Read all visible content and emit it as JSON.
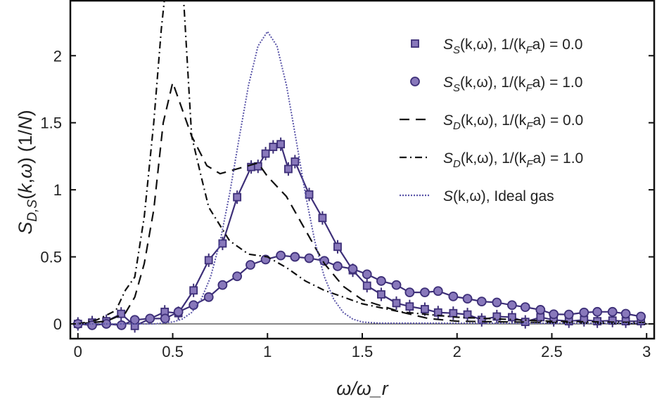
{
  "chart_data": {
    "type": "line",
    "xlabel": "ω/ω_r",
    "ylabel": "S_D,S(k,ω) (1/N)",
    "xlim": [
      -0.04,
      3.04
    ],
    "ylim": [
      -0.11,
      2.41
    ],
    "xticks": [
      "0",
      "0.5",
      "1",
      "1.5",
      "2",
      "2.5",
      "3"
    ],
    "xtick_values": [
      0,
      0.5,
      1,
      1.5,
      2,
      2.5,
      3
    ],
    "yticks": [
      "0",
      "0.5",
      "1",
      "1.5",
      "2"
    ],
    "ytick_values": [
      0,
      0.5,
      1,
      1.5,
      2
    ],
    "grid": false,
    "legend_position": "top-right",
    "colors": {
      "accent": "#3d2f78",
      "marker_fill": "#8878bb",
      "black": "#111111",
      "ideal": "#5a55a8"
    },
    "series": [
      {
        "name": "S_S(k,ω), 1/(k_F a) = 0.0",
        "legend": {
          "main": "S",
          "sub": "S",
          "args": "(k,ω), 1/(k",
          "sub2": "F",
          "tail": "a) = 0.0"
        },
        "style": "squares-line",
        "x": [
          0,
          0.075,
          0.15,
          0.228,
          0.3,
          0.458,
          0.53,
          0.61,
          0.69,
          0.763,
          0.84,
          0.914,
          0.95,
          0.99,
          1.03,
          1.07,
          1.11,
          1.145,
          1.22,
          1.29,
          1.37,
          1.45,
          1.525,
          1.6,
          1.68,
          1.75,
          1.83,
          1.9,
          1.98,
          2.055,
          2.13,
          2.21,
          2.29,
          2.36,
          2.44,
          2.51,
          2.59,
          2.67,
          2.74,
          2.82,
          2.89,
          2.97
        ],
        "y": [
          0,
          0.01,
          0.02,
          0.075,
          -0.015,
          0.09,
          0.08,
          0.25,
          0.475,
          0.6,
          0.945,
          1.17,
          1.175,
          1.27,
          1.32,
          1.34,
          1.155,
          1.21,
          0.965,
          0.79,
          0.575,
          0.4,
          0.285,
          0.22,
          0.155,
          0.13,
          0.11,
          0.085,
          0.08,
          0.07,
          0.03,
          0.055,
          0.05,
          0.015,
          0.05,
          0.03,
          0.02,
          0.03,
          0.02,
          0.025,
          0.02,
          0.02
        ],
        "yerr": 0.05
      },
      {
        "name": "S_S(k,ω), 1/(k_F a) = 1.0",
        "legend": {
          "main": "S",
          "sub": "S",
          "args": "(k,ω), 1/(k",
          "sub2": "F",
          "tail": "a) = 1.0"
        },
        "style": "circles-line",
        "x": [
          0,
          0.075,
          0.15,
          0.23,
          0.3,
          0.38,
          0.46,
          0.53,
          0.61,
          0.69,
          0.763,
          0.84,
          0.91,
          0.99,
          1.07,
          1.145,
          1.22,
          1.3,
          1.37,
          1.45,
          1.525,
          1.6,
          1.68,
          1.75,
          1.83,
          1.9,
          1.98,
          2.055,
          2.13,
          2.21,
          2.29,
          2.36,
          2.44,
          2.51,
          2.59,
          2.67,
          2.74,
          2.82,
          2.89,
          2.97
        ],
        "y": [
          0,
          -0.01,
          0.0,
          -0.01,
          0.03,
          0.04,
          0.04,
          0.09,
          0.14,
          0.2,
          0.29,
          0.355,
          0.44,
          0.48,
          0.51,
          0.5,
          0.49,
          0.47,
          0.43,
          0.41,
          0.37,
          0.32,
          0.29,
          0.235,
          0.235,
          0.245,
          0.205,
          0.188,
          0.167,
          0.16,
          0.14,
          0.125,
          0.105,
          0.072,
          0.07,
          0.085,
          0.09,
          0.09,
          0.076,
          0.055
        ]
      },
      {
        "name": "S_D(k,ω), 1/(k_F a) = 0.0",
        "legend": {
          "main": "S",
          "sub": "D",
          "args": "(k,ω), 1/(k",
          "sub2": "F",
          "tail": "a) = 0.0"
        },
        "style": "dashed",
        "x": [
          0,
          0.15,
          0.25,
          0.3,
          0.35,
          0.4,
          0.45,
          0.5,
          0.55,
          0.6,
          0.68,
          0.75,
          0.85,
          0.95,
          1.0,
          1.1,
          1.2,
          1.3,
          1.4,
          1.5,
          1.7,
          1.85,
          2.0,
          2.5,
          3.0
        ],
        "y": [
          0,
          0.02,
          0.08,
          0.2,
          0.45,
          0.85,
          1.5,
          1.8,
          1.6,
          1.4,
          1.18,
          1.12,
          1.16,
          1.2,
          1.1,
          0.95,
          0.7,
          0.45,
          0.28,
          0.18,
          0.09,
          0.04,
          0.02,
          0.01,
          0.0
        ]
      },
      {
        "name": "S_D(k,ω), 1/(k_F a) = 1.0",
        "legend": {
          "main": "S",
          "sub": "D",
          "args": "(k,ω), 1/(k",
          "sub2": "F",
          "tail": "a) = 1.0"
        },
        "style": "dashdot",
        "x": [
          0,
          0.1,
          0.2,
          0.25,
          0.3,
          0.35,
          0.4,
          0.44,
          0.47,
          0.5,
          0.55,
          0.6,
          0.65,
          0.69,
          0.8,
          0.9,
          1.0,
          1.1,
          1.2,
          1.3,
          1.5,
          1.7,
          2.0,
          2.5,
          3.0
        ],
        "y": [
          0,
          0.03,
          0.1,
          0.25,
          0.35,
          0.8,
          1.5,
          2.2,
          2.6,
          2.7,
          2.6,
          1.4,
          1.1,
          0.87,
          0.62,
          0.52,
          0.5,
          0.42,
          0.32,
          0.25,
          0.15,
          0.09,
          0.05,
          0.02,
          0.01
        ]
      },
      {
        "name": "S(k,ω), Ideal gas",
        "legend": {
          "main": "S",
          "sub": "",
          "args": "(k,ω), Ideal gas",
          "sub2": "",
          "tail": ""
        },
        "style": "dotted",
        "x": [
          0,
          0.4,
          0.5,
          0.55,
          0.6,
          0.65,
          0.7,
          0.75,
          0.8,
          0.85,
          0.9,
          0.95,
          1.0,
          1.05,
          1.1,
          1.15,
          1.2,
          1.25,
          1.3,
          1.35,
          1.4,
          1.45,
          1.5,
          1.6,
          3.0
        ],
        "y": [
          0,
          0,
          0.014,
          0.036,
          0.085,
          0.182,
          0.351,
          0.614,
          0.968,
          1.381,
          1.78,
          2.072,
          2.18,
          2.072,
          1.78,
          1.381,
          0.968,
          0.614,
          0.351,
          0.182,
          0.085,
          0.036,
          0.014,
          0.005,
          0.005
        ]
      }
    ]
  }
}
